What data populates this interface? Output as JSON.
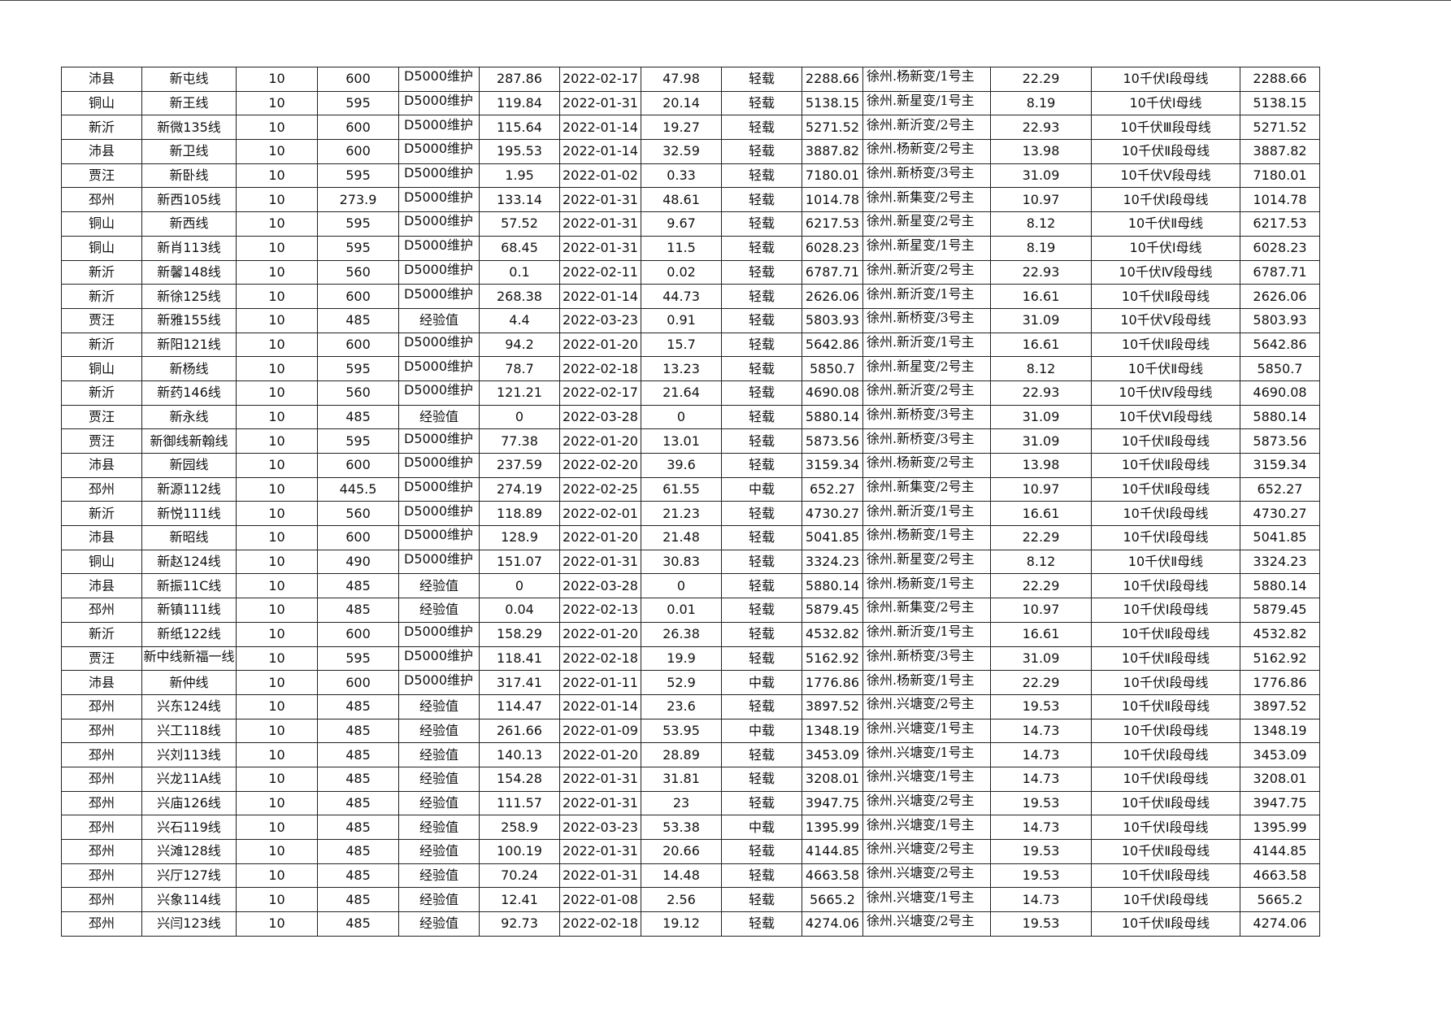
{
  "table": {
    "rows": [
      [
        "沛县",
        "新屯线",
        "10",
        "600",
        "D5000维护",
        "287.86",
        "2022-02-17",
        "47.98",
        "轻载",
        "2288.66",
        "徐州.杨新变/1号主",
        "22.29",
        "10千伏Ⅰ段母线",
        "2288.66"
      ],
      [
        "铜山",
        "新王线",
        "10",
        "595",
        "D5000维护",
        "119.84",
        "2022-01-31",
        "20.14",
        "轻载",
        "5138.15",
        "徐州.新星变/1号主",
        "8.19",
        "10千伏Ⅰ母线",
        "5138.15"
      ],
      [
        "新沂",
        "新微135线",
        "10",
        "600",
        "D5000维护",
        "115.64",
        "2022-01-14",
        "19.27",
        "轻载",
        "5271.52",
        "徐州.新沂变/2号主",
        "22.93",
        "10千伏Ⅲ段母线",
        "5271.52"
      ],
      [
        "沛县",
        "新卫线",
        "10",
        "600",
        "D5000维护",
        "195.53",
        "2022-01-14",
        "32.59",
        "轻载",
        "3887.82",
        "徐州.杨新变/2号主",
        "13.98",
        "10千伏Ⅱ段母线",
        "3887.82"
      ],
      [
        "贾汪",
        "新卧线",
        "10",
        "595",
        "D5000维护",
        "1.95",
        "2022-01-02",
        "0.33",
        "轻载",
        "7180.01",
        "徐州.新桥变/3号主",
        "31.09",
        "10千伏Ⅴ段母线",
        "7180.01"
      ],
      [
        "邳州",
        "新西105线",
        "10",
        "273.9",
        "D5000维护",
        "133.14",
        "2022-01-31",
        "48.61",
        "轻载",
        "1014.78",
        "徐州.新集变/2号主",
        "10.97",
        "10千伏Ⅰ段母线",
        "1014.78"
      ],
      [
        "铜山",
        "新西线",
        "10",
        "595",
        "D5000维护",
        "57.52",
        "2022-01-31",
        "9.67",
        "轻载",
        "6217.53",
        "徐州.新星变/2号主",
        "8.12",
        "10千伏Ⅱ母线",
        "6217.53"
      ],
      [
        "铜山",
        "新肖113线",
        "10",
        "595",
        "D5000维护",
        "68.45",
        "2022-01-31",
        "11.5",
        "轻载",
        "6028.23",
        "徐州.新星变/1号主",
        "8.19",
        "10千伏Ⅰ母线",
        "6028.23"
      ],
      [
        "新沂",
        "新馨148线",
        "10",
        "560",
        "D5000维护",
        "0.1",
        "2022-02-11",
        "0.02",
        "轻载",
        "6787.71",
        "徐州.新沂变/2号主",
        "22.93",
        "10千伏Ⅳ段母线",
        "6787.71"
      ],
      [
        "新沂",
        "新徐125线",
        "10",
        "600",
        "D5000维护",
        "268.38",
        "2022-01-14",
        "44.73",
        "轻载",
        "2626.06",
        "徐州.新沂变/1号主",
        "16.61",
        "10千伏Ⅱ段母线",
        "2626.06"
      ],
      [
        "贾汪",
        "新雅155线",
        "10",
        "485",
        "经验值",
        "4.4",
        "2022-03-23",
        "0.91",
        "轻载",
        "5803.93",
        "徐州.新桥变/3号主",
        "31.09",
        "10千伏Ⅴ段母线",
        "5803.93"
      ],
      [
        "新沂",
        "新阳121线",
        "10",
        "600",
        "D5000维护",
        "94.2",
        "2022-01-20",
        "15.7",
        "轻载",
        "5642.86",
        "徐州.新沂变/1号主",
        "16.61",
        "10千伏Ⅱ段母线",
        "5642.86"
      ],
      [
        "铜山",
        "新杨线",
        "10",
        "595",
        "D5000维护",
        "78.7",
        "2022-02-18",
        "13.23",
        "轻载",
        "5850.7",
        "徐州.新星变/2号主",
        "8.12",
        "10千伏Ⅱ母线",
        "5850.7"
      ],
      [
        "新沂",
        "新药146线",
        "10",
        "560",
        "D5000维护",
        "121.21",
        "2022-02-17",
        "21.64",
        "轻载",
        "4690.08",
        "徐州.新沂变/2号主",
        "22.93",
        "10千伏Ⅳ段母线",
        "4690.08"
      ],
      [
        "贾汪",
        "新永线",
        "10",
        "485",
        "经验值",
        "0",
        "2022-03-28",
        "0",
        "轻载",
        "5880.14",
        "徐州.新桥变/3号主",
        "31.09",
        "10千伏Ⅵ段母线",
        "5880.14"
      ],
      [
        "贾汪",
        "新御线新翰线",
        "10",
        "595",
        "D5000维护",
        "77.38",
        "2022-01-20",
        "13.01",
        "轻载",
        "5873.56",
        "徐州.新桥变/3号主",
        "31.09",
        "10千伏Ⅱ段母线",
        "5873.56"
      ],
      [
        "沛县",
        "新园线",
        "10",
        "600",
        "D5000维护",
        "237.59",
        "2022-02-20",
        "39.6",
        "轻载",
        "3159.34",
        "徐州.杨新变/2号主",
        "13.98",
        "10千伏Ⅱ段母线",
        "3159.34"
      ],
      [
        "邳州",
        "新源112线",
        "10",
        "445.5",
        "D5000维护",
        "274.19",
        "2022-02-25",
        "61.55",
        "中载",
        "652.27",
        "徐州.新集变/2号主",
        "10.97",
        "10千伏Ⅱ段母线",
        "652.27"
      ],
      [
        "新沂",
        "新悦111线",
        "10",
        "560",
        "D5000维护",
        "118.89",
        "2022-02-01",
        "21.23",
        "轻载",
        "4730.27",
        "徐州.新沂变/1号主",
        "16.61",
        "10千伏Ⅰ段母线",
        "4730.27"
      ],
      [
        "沛县",
        "新昭线",
        "10",
        "600",
        "D5000维护",
        "128.9",
        "2022-01-20",
        "21.48",
        "轻载",
        "5041.85",
        "徐州.杨新变/1号主",
        "22.29",
        "10千伏Ⅰ段母线",
        "5041.85"
      ],
      [
        "铜山",
        "新赵124线",
        "10",
        "490",
        "D5000维护",
        "151.07",
        "2022-01-31",
        "30.83",
        "轻载",
        "3324.23",
        "徐州.新星变/2号主",
        "8.12",
        "10千伏Ⅱ母线",
        "3324.23"
      ],
      [
        "沛县",
        "新振11C线",
        "10",
        "485",
        "经验值",
        "0",
        "2022-03-28",
        "0",
        "轻载",
        "5880.14",
        "徐州.杨新变/1号主",
        "22.29",
        "10千伏Ⅰ段母线",
        "5880.14"
      ],
      [
        "邳州",
        "新镇111线",
        "10",
        "485",
        "经验值",
        "0.04",
        "2022-02-13",
        "0.01",
        "轻载",
        "5879.45",
        "徐州.新集变/2号主",
        "10.97",
        "10千伏Ⅰ段母线",
        "5879.45"
      ],
      [
        "新沂",
        "新纸122线",
        "10",
        "600",
        "D5000维护",
        "158.29",
        "2022-01-20",
        "26.38",
        "轻载",
        "4532.82",
        "徐州.新沂变/1号主",
        "16.61",
        "10千伏Ⅱ段母线",
        "4532.82"
      ],
      [
        "贾汪",
        "新中线新福一线",
        "10",
        "595",
        "D5000维护",
        "118.41",
        "2022-02-18",
        "19.9",
        "轻载",
        "5162.92",
        "徐州.新桥变/3号主",
        "31.09",
        "10千伏Ⅱ段母线",
        "5162.92"
      ],
      [
        "沛县",
        "新仲线",
        "10",
        "600",
        "D5000维护",
        "317.41",
        "2022-01-11",
        "52.9",
        "中载",
        "1776.86",
        "徐州.杨新变/1号主",
        "22.29",
        "10千伏Ⅰ段母线",
        "1776.86"
      ],
      [
        "邳州",
        "兴东124线",
        "10",
        "485",
        "经验值",
        "114.47",
        "2022-01-14",
        "23.6",
        "轻载",
        "3897.52",
        "徐州.兴塘变/2号主",
        "19.53",
        "10千伏Ⅱ段母线",
        "3897.52"
      ],
      [
        "邳州",
        "兴工118线",
        "10",
        "485",
        "经验值",
        "261.66",
        "2022-01-09",
        "53.95",
        "中载",
        "1348.19",
        "徐州.兴塘变/1号主",
        "14.73",
        "10千伏Ⅰ段母线",
        "1348.19"
      ],
      [
        "邳州",
        "兴刘113线",
        "10",
        "485",
        "经验值",
        "140.13",
        "2022-01-20",
        "28.89",
        "轻载",
        "3453.09",
        "徐州.兴塘变/1号主",
        "14.73",
        "10千伏Ⅰ段母线",
        "3453.09"
      ],
      [
        "邳州",
        "兴龙11A线",
        "10",
        "485",
        "经验值",
        "154.28",
        "2022-01-31",
        "31.81",
        "轻载",
        "3208.01",
        "徐州.兴塘变/1号主",
        "14.73",
        "10千伏Ⅰ段母线",
        "3208.01"
      ],
      [
        "邳州",
        "兴庙126线",
        "10",
        "485",
        "经验值",
        "111.57",
        "2022-01-31",
        "23",
        "轻载",
        "3947.75",
        "徐州.兴塘变/2号主",
        "19.53",
        "10千伏Ⅱ段母线",
        "3947.75"
      ],
      [
        "邳州",
        "兴石119线",
        "10",
        "485",
        "经验值",
        "258.9",
        "2022-03-23",
        "53.38",
        "中载",
        "1395.99",
        "徐州.兴塘变/1号主",
        "14.73",
        "10千伏Ⅰ段母线",
        "1395.99"
      ],
      [
        "邳州",
        "兴滩128线",
        "10",
        "485",
        "经验值",
        "100.19",
        "2022-01-31",
        "20.66",
        "轻载",
        "4144.85",
        "徐州.兴塘变/2号主",
        "19.53",
        "10千伏Ⅱ段母线",
        "4144.85"
      ],
      [
        "邳州",
        "兴厅127线",
        "10",
        "485",
        "经验值",
        "70.24",
        "2022-01-31",
        "14.48",
        "轻载",
        "4663.58",
        "徐州.兴塘变/2号主",
        "19.53",
        "10千伏Ⅱ段母线",
        "4663.58"
      ],
      [
        "邳州",
        "兴象114线",
        "10",
        "485",
        "经验值",
        "12.41",
        "2022-01-08",
        "2.56",
        "轻载",
        "5665.2",
        "徐州.兴塘变/1号主",
        "14.73",
        "10千伏Ⅰ段母线",
        "5665.2"
      ],
      [
        "邳州",
        "兴闫123线",
        "10",
        "485",
        "经验值",
        "92.73",
        "2022-02-18",
        "19.12",
        "轻载",
        "4274.06",
        "徐州.兴塘变/2号主",
        "19.53",
        "10千伏Ⅱ段母线",
        "4274.06"
      ]
    ]
  }
}
